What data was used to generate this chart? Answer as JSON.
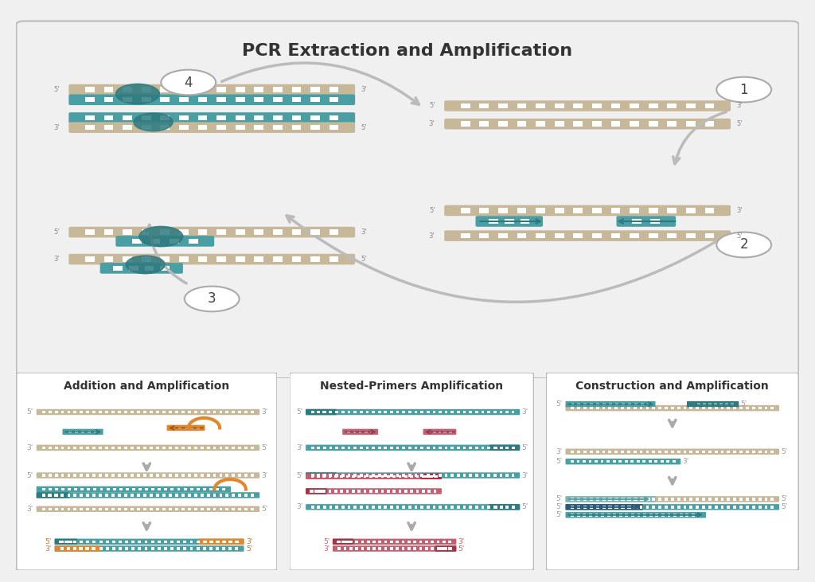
{
  "title": "PCR Extraction and Amplification",
  "bg_color": "#f0f0f0",
  "panel_bg": "#f5f5f5",
  "box_bg": "#ffffff",
  "border_color": "#cccccc",
  "dna_tan": "#c8b89a",
  "dna_teal": "#4a9fa5",
  "dna_teal_dark": "#2d7a80",
  "dna_pink": "#c06070",
  "dna_orange": "#e08830",
  "dna_blue": "#3a5f8a",
  "arrow_gray": "#aaaaaa",
  "text_color": "#333333",
  "label_color": "#888888",
  "sub_titles": [
    "Addition and Amplification",
    "Nested-Primers Amplification",
    "Construction and Amplification"
  ]
}
